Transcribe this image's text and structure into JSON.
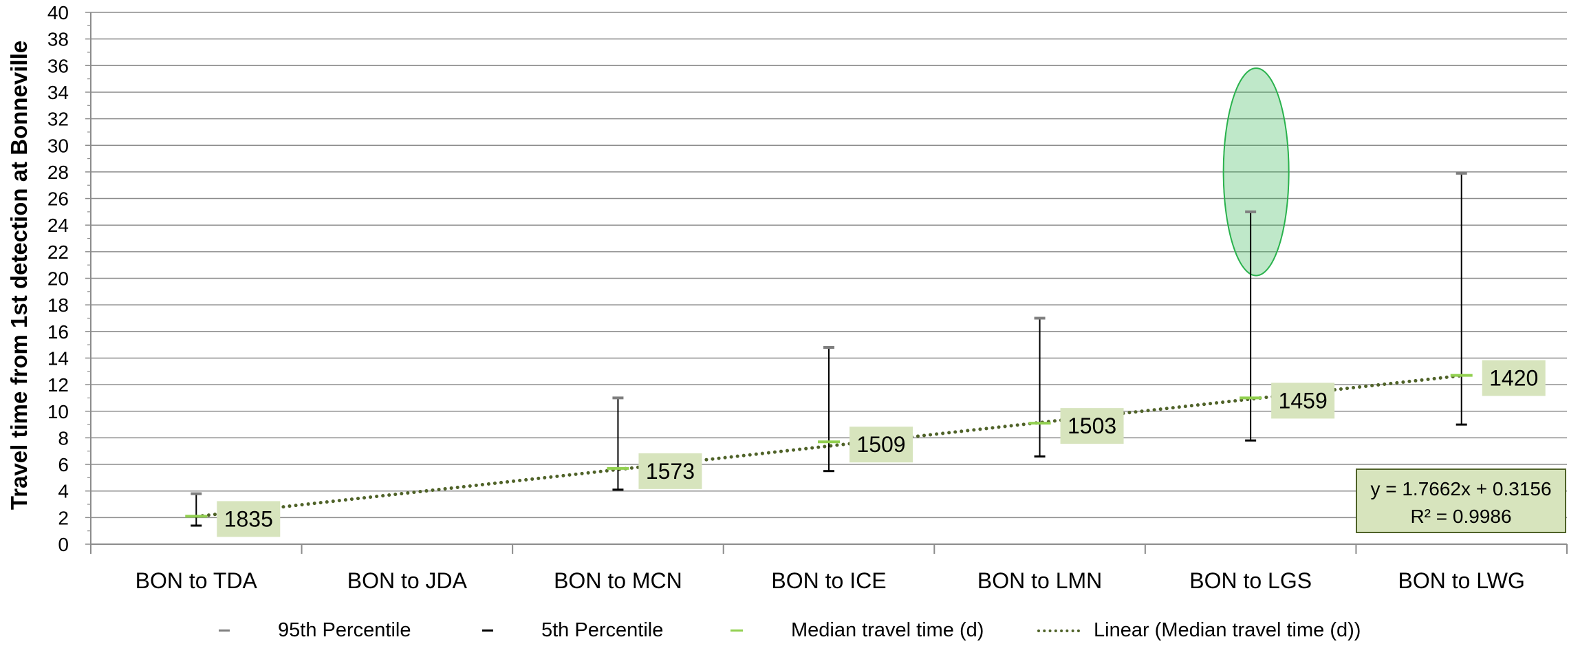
{
  "chart_data": {
    "type": "bar",
    "ylabel": "Travel time from 1st detection at Bonneville",
    "xlabel": "",
    "ylim": [
      0,
      40
    ],
    "yticks": [
      0,
      2,
      4,
      6,
      8,
      10,
      12,
      14,
      16,
      18,
      20,
      22,
      24,
      26,
      28,
      30,
      32,
      34,
      36,
      38,
      40
    ],
    "grid": true,
    "categories": [
      "BON to TDA",
      "BON to JDA",
      "BON to MCN",
      "BON to ICE",
      "BON to LMN",
      "BON to LGS",
      "BON to LWG"
    ],
    "series": [
      {
        "name": "95th Percentile",
        "color": "#7f7f7f",
        "values": [
          3.8,
          null,
          11.0,
          14.8,
          17.0,
          25.0,
          27.9
        ]
      },
      {
        "name": "5th Percentile",
        "color": "#000000",
        "values": [
          1.4,
          null,
          4.1,
          5.5,
          6.6,
          7.8,
          9.0
        ]
      },
      {
        "name": "Median travel time (d)",
        "color": "#92d050",
        "values": [
          2.1,
          null,
          5.7,
          7.7,
          9.1,
          11.0,
          12.7
        ]
      }
    ],
    "data_labels": [
      "1835",
      null,
      "1573",
      "1509",
      "1503",
      "1459",
      "1420"
    ],
    "trendline": {
      "name": "Linear (Median travel time (d))",
      "color": "#4f6228",
      "slope": 1.7662,
      "intercept": 0.3156,
      "equation": "y = 1.7662x + 0.3156",
      "r2": "R² = 0.9986"
    },
    "annotation": {
      "type": "ellipse",
      "category": "BON to LGS",
      "y_range": [
        20.2,
        35.8
      ],
      "color": "#2ab24d"
    },
    "legend_position": "bottom"
  }
}
